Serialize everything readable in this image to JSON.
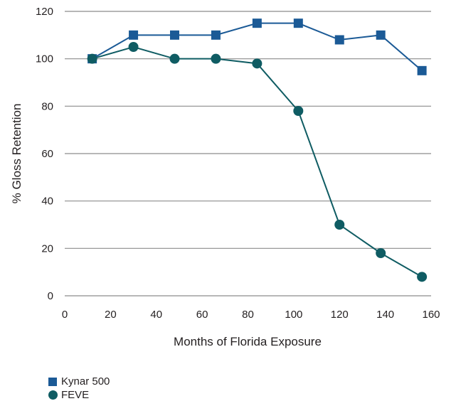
{
  "chart_data": {
    "type": "line",
    "xlabel": "Months of Florida Exposure",
    "ylabel": "% Gloss Retention",
    "xlim": [
      0,
      160
    ],
    "ylim": [
      0,
      120
    ],
    "xticks": [
      0,
      20,
      40,
      60,
      80,
      100,
      120,
      140,
      160
    ],
    "yticks": [
      0,
      20,
      40,
      60,
      80,
      100,
      120
    ],
    "grid": "horizontal",
    "legend_position": "bottom-left",
    "series": [
      {
        "name": "Kynar 500",
        "marker": "square",
        "color": "#1b5a96",
        "x": [
          12,
          30,
          48,
          66,
          84,
          102,
          120,
          138,
          156
        ],
        "y": [
          100,
          110,
          110,
          110,
          115,
          115,
          108,
          110,
          95
        ]
      },
      {
        "name": "FEVE",
        "marker": "circle",
        "color": "#0f5c63",
        "x": [
          12,
          30,
          48,
          66,
          84,
          102,
          120,
          138,
          156
        ],
        "y": [
          100,
          105,
          100,
          100,
          98,
          78,
          30,
          18,
          8
        ]
      }
    ]
  }
}
